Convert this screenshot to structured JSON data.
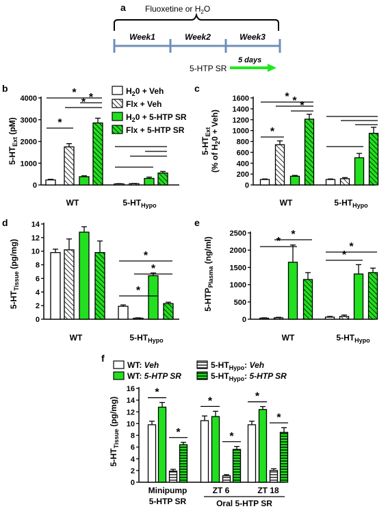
{
  "colors": {
    "white": "#ffffff",
    "green": "#22e01f",
    "black": "#000000",
    "timeline": "#6d8fb8",
    "arrow": "#1ee81a"
  },
  "panel_a": {
    "letter": "a",
    "treatment_label": "Fluoxetine or H",
    "treatment_sub": "2",
    "treatment_tail": "O",
    "weeks": [
      "Week1",
      "Week2",
      "Week3"
    ],
    "drug_label": "5-HTP SR",
    "days_label": "5 days"
  },
  "chart_data": [
    {
      "id": "b",
      "type": "bar",
      "letter": "b",
      "ylabel": "5-HT",
      "ylabel_sub": "Ext",
      "ylabel_tail": " (pM)",
      "ylim": [
        0,
        4000
      ],
      "ytick_labels": [
        "0",
        "1000",
        "2000",
        "3000",
        "4000"
      ],
      "groups": [
        {
          "label": "WT",
          "sub": ""
        },
        {
          "label": "5-HT",
          "sub": "Hypo"
        }
      ],
      "legend": [
        {
          "label": "H",
          "sub": "2",
          "tail": "0 + Veh"
        },
        {
          "label": "Flx + Veh",
          "sub": "",
          "tail": ""
        },
        {
          "label": "H",
          "sub": "2",
          "tail": "0 + 5-HTP SR"
        },
        {
          "label": "Flx + 5-HTP SR",
          "sub": "",
          "tail": ""
        }
      ],
      "series": [
        {
          "name": "H20 + Veh",
          "values": [
            230,
            50
          ],
          "errors": [
            30,
            10
          ]
        },
        {
          "name": "Flx + Veh",
          "values": [
            1750,
            60
          ],
          "errors": [
            150,
            10
          ]
        },
        {
          "name": "H20 + 5-HTP SR",
          "values": [
            380,
            300
          ],
          "errors": [
            40,
            60
          ]
        },
        {
          "name": "Flx + 5-HTP SR",
          "values": [
            2850,
            550
          ],
          "errors": [
            220,
            70
          ]
        }
      ],
      "annotations": [
        "*",
        "*",
        "*",
        "*"
      ]
    },
    {
      "id": "c",
      "type": "bar",
      "letter": "c",
      "ylabel": "5-HT",
      "ylabel_sub": "Ext",
      "ylabel_line2": "(% of H",
      "ylabel_line2_sub": "2",
      "ylabel_line2_tail": "0 + Veh)",
      "ylim": [
        0,
        1600
      ],
      "ytick_labels": [
        "0",
        "200",
        "400",
        "600",
        "800",
        "1000",
        "1200",
        "1400",
        "1600"
      ],
      "groups": [
        {
          "label": "WT",
          "sub": ""
        },
        {
          "label": "5-HT",
          "sub": "Hypo"
        }
      ],
      "series": [
        {
          "name": "H20 + Veh",
          "values": [
            100,
            100
          ],
          "errors": [
            10,
            10
          ]
        },
        {
          "name": "Flx + Veh",
          "values": [
            740,
            115
          ],
          "errors": [
            70,
            20
          ]
        },
        {
          "name": "H20 + 5-HTP SR",
          "values": [
            160,
            500
          ],
          "errors": [
            15,
            80
          ]
        },
        {
          "name": "Flx + 5-HTP SR",
          "values": [
            1210,
            950
          ],
          "errors": [
            90,
            110
          ]
        }
      ],
      "annotations": [
        "*",
        "*",
        "*",
        "*"
      ]
    },
    {
      "id": "d",
      "type": "bar",
      "letter": "d",
      "ylabel": "5-HT",
      "ylabel_sub": "Tissue",
      "ylabel_tail": " (pg/mg)",
      "ylim": [
        0,
        14
      ],
      "ytick_labels": [
        "0",
        "2",
        "4",
        "6",
        "8",
        "10",
        "12",
        "14"
      ],
      "groups": [
        {
          "label": "WT",
          "sub": ""
        },
        {
          "label": "5-HT",
          "sub": "Hypo"
        }
      ],
      "series": [
        {
          "name": "H20 + Veh",
          "values": [
            9.8,
            1.9
          ],
          "errors": [
            0.5,
            0.2
          ]
        },
        {
          "name": "Flx + Veh",
          "values": [
            10.2,
            0.15
          ],
          "errors": [
            1.6,
            0.05
          ]
        },
        {
          "name": "H20 + 5-HTP SR",
          "values": [
            12.8,
            6.4
          ],
          "errors": [
            0.8,
            0.4
          ]
        },
        {
          "name": "Flx + 5-HTP SR",
          "values": [
            9.8,
            2.3
          ],
          "errors": [
            1.7,
            0.2
          ]
        }
      ],
      "annotations": [
        "*",
        "*",
        "*"
      ]
    },
    {
      "id": "e",
      "type": "bar",
      "letter": "e",
      "ylabel": "5-HTP",
      "ylabel_sub": "Plasma",
      "ylabel_tail": " (ng/ml)",
      "ylim": [
        0,
        2500
      ],
      "ytick_labels": [
        "0",
        "500",
        "1000",
        "1500",
        "2000",
        "2500"
      ],
      "groups": [
        {
          "label": "WT",
          "sub": ""
        },
        {
          "label": "5-HT",
          "sub": "Hypo"
        }
      ],
      "series": [
        {
          "name": "H20 + Veh",
          "values": [
            30,
            60
          ],
          "errors": [
            10,
            20
          ]
        },
        {
          "name": "Flx + Veh",
          "values": [
            40,
            80
          ],
          "errors": [
            15,
            40
          ]
        },
        {
          "name": "H20 + 5-HTP SR",
          "values": [
            1650,
            1310
          ],
          "errors": [
            500,
            270
          ]
        },
        {
          "name": "Flx + 5-HTP SR",
          "values": [
            1150,
            1350
          ],
          "errors": [
            200,
            130
          ]
        }
      ],
      "annotations": [
        "*",
        "*",
        "*",
        "*"
      ]
    },
    {
      "id": "f",
      "type": "bar",
      "letter": "f",
      "ylabel": "5-HT",
      "ylabel_sub": "Tissue",
      "ylabel_tail": " (pg/mg)",
      "ylim": [
        0,
        16
      ],
      "ytick_labels": [
        "0",
        "2",
        "4",
        "6",
        "8",
        "10",
        "12",
        "14",
        "16"
      ],
      "legend": [
        {
          "prefix": "WT: ",
          "sub": "",
          "italic": "Veh"
        },
        {
          "prefix": "WT: ",
          "sub": "",
          "italic": "5-HTP SR"
        },
        {
          "prefix": "5-HT",
          "sub": "Hypo",
          "italic": "Veh"
        },
        {
          "prefix": "5-HT",
          "sub": "Hypo",
          "italic": "5-HTP SR"
        }
      ],
      "categories": [
        "Minipump 5-HTP SR",
        "ZT 6",
        "ZT 18"
      ],
      "xtick_line1": [
        "Minipump",
        "ZT 6",
        "ZT 18"
      ],
      "xtick_line2": [
        "5-HTP SR",
        "",
        ""
      ],
      "group_label": "Oral 5-HTP SR",
      "series": [
        {
          "name": "WT: Veh",
          "values": [
            9.8,
            10.5,
            9.8
          ],
          "errors": [
            0.6,
            0.8,
            0.6
          ]
        },
        {
          "name": "WT: 5-HTP SR",
          "values": [
            12.8,
            11.2,
            12.4
          ],
          "errors": [
            0.8,
            0.9,
            0.5
          ]
        },
        {
          "name": "5-HTHypo: Veh",
          "values": [
            1.9,
            1.1,
            2.0
          ],
          "errors": [
            0.3,
            0.2,
            0.3
          ]
        },
        {
          "name": "5-HTHypo: 5-HTP SR",
          "values": [
            6.4,
            5.6,
            8.5
          ],
          "errors": [
            0.4,
            0.5,
            0.8
          ]
        }
      ],
      "annotations": [
        "*",
        "*",
        "*",
        "*",
        "*",
        "*"
      ]
    }
  ]
}
